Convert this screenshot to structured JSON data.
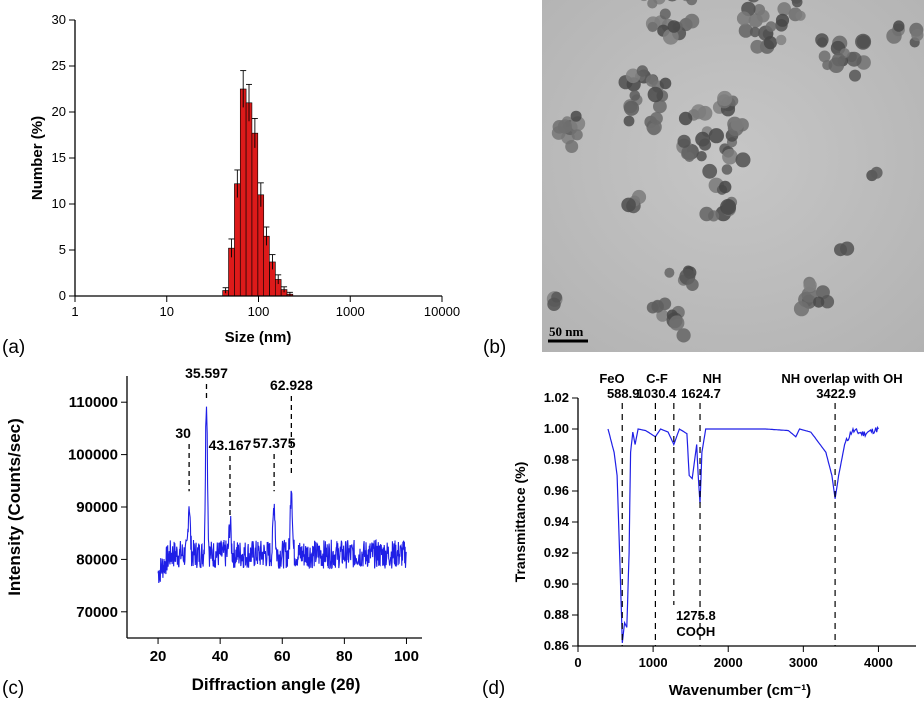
{
  "panels": [
    {
      "letter": "(a)"
    },
    {
      "letter": "(b)"
    },
    {
      "letter": "(c)"
    },
    {
      "letter": "(d)"
    }
  ],
  "tem_image": {
    "scale_bar_label": "50 nm"
  },
  "colors": {
    "bar": "#dd1a1a",
    "line": "#1f1fe6",
    "axis": "#000000"
  },
  "chart_data": [
    {
      "type": "bar",
      "panel": "(a)",
      "title": "",
      "xlabel": "Size (nm)",
      "ylabel": "Number (%)",
      "xscale": "log",
      "xlim": [
        1,
        10000
      ],
      "ylim": [
        0,
        30
      ],
      "xticks": [
        "1",
        "10",
        "100",
        "1000",
        "10000"
      ],
      "yticks": [
        "0",
        "5",
        "10",
        "15",
        "20",
        "25",
        "30"
      ],
      "x": [
        43.8,
        50.7,
        58.8,
        68.1,
        78.8,
        91.3,
        106,
        122,
        142,
        164,
        190,
        220
      ],
      "values": [
        0.6,
        5.2,
        12.2,
        22.5,
        21.0,
        17.7,
        11.0,
        6.5,
        3.7,
        1.8,
        0.7,
        0.2
      ],
      "error": [
        0.3,
        1.0,
        1.5,
        2.0,
        2.0,
        1.6,
        1.3,
        1.0,
        0.8,
        0.5,
        0.3,
        0.2
      ]
    },
    {
      "type": "line",
      "panel": "(c)",
      "title": "",
      "xlabel": "Diffraction angle (2θ)",
      "ylabel": "Intensity (Counts/sec)",
      "xlim": [
        10,
        105
      ],
      "ylim": [
        65000,
        115000
      ],
      "xticks": [
        "20",
        "40",
        "60",
        "80",
        "100"
      ],
      "yticks": [
        "70000",
        "80000",
        "90000",
        "100000",
        "110000"
      ],
      "baseline": 81000,
      "series_range": [
        20,
        100
      ],
      "peaks": [
        {
          "x": 30,
          "y": 91000,
          "label": "30"
        },
        {
          "x": 35.597,
          "y": 111000,
          "label": "35.597"
        },
        {
          "x": 43.167,
          "y": 87000,
          "label": "43.167"
        },
        {
          "x": 57.375,
          "y": 91000,
          "label": "57.375"
        },
        {
          "x": 62.928,
          "y": 95000,
          "label": "62.928"
        }
      ]
    },
    {
      "type": "line",
      "panel": "(d)",
      "title": "",
      "xlabel": "Wavenumber (cm⁻¹)",
      "ylabel": "Transmittance (%)",
      "xlim": [
        0,
        4500
      ],
      "ylim": [
        0.86,
        1.02
      ],
      "xticks": [
        "0",
        "1000",
        "2000",
        "3000",
        "4000"
      ],
      "yticks": [
        "0.86",
        "0.88",
        "0.90",
        "0.92",
        "0.94",
        "0.96",
        "0.98",
        "1.00",
        "1.02"
      ],
      "x": [
        400,
        480,
        520,
        560,
        590,
        620,
        650,
        680,
        700,
        730,
        760,
        800,
        900,
        1030,
        1100,
        1200,
        1275.8,
        1350,
        1450,
        1480,
        1520,
        1580,
        1600,
        1624.7,
        1650,
        1700,
        1800,
        2000,
        2500,
        2800,
        2900,
        2950,
        3100,
        3300,
        3380,
        3422.9,
        3470,
        3550,
        3650,
        3800,
        4000
      ],
      "y": [
        1.0,
        0.985,
        0.97,
        0.91,
        0.862,
        0.875,
        0.872,
        0.92,
        0.985,
        0.998,
        0.99,
        1.0,
        0.999,
        0.995,
        1.0,
        0.998,
        0.99,
        1.0,
        0.997,
        0.97,
        0.968,
        0.99,
        0.97,
        0.952,
        0.985,
        1.0,
        1.0,
        1.0,
        1.0,
        0.999,
        0.995,
        1.0,
        0.998,
        0.985,
        0.97,
        0.955,
        0.97,
        0.99,
        0.999,
        0.997,
        1.0
      ],
      "annotations": [
        {
          "x": 588.9,
          "label": "FeO",
          "value": "588.9"
        },
        {
          "x": 1030.4,
          "label": "C-F",
          "value": "1030.4"
        },
        {
          "x": 1624.7,
          "label": "NH",
          "value": "1624.7"
        },
        {
          "x": 3422.9,
          "label": "NH overlap with OH",
          "value": "3422.9"
        },
        {
          "x": 1275.8,
          "label": "COOH",
          "value": "1275.8"
        }
      ]
    }
  ]
}
